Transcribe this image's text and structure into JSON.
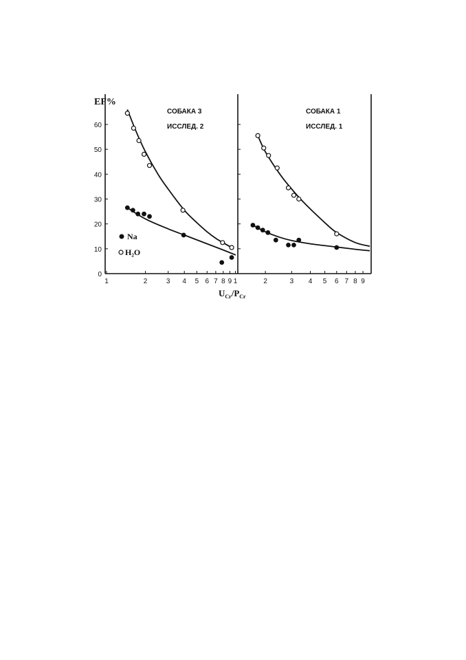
{
  "chart_data": [
    {
      "type": "scatter",
      "ylabel": "EF%",
      "xlabel": "U",
      "xlabel_sub1": "Cr",
      "xlabel_mid": "/P",
      "xlabel_sub2": "Cr",
      "x_scale": "log",
      "xlim": [
        1,
        10
      ],
      "ylim": [
        0,
        70
      ],
      "y_ticks": [
        "0",
        "10",
        "20",
        "30",
        "40",
        "50",
        "60"
      ],
      "x_ticks": [
        "1",
        "2",
        "3",
        "4",
        "5",
        "6",
        "7",
        "8",
        "9",
        "1"
      ],
      "annotation": [
        "СОБАКА 3",
        "ИССЛЕД. 2"
      ],
      "legend": [
        "Na",
        "H₂O"
      ],
      "series": [
        {
          "name": "H₂O",
          "marker": "open",
          "x": [
            1.45,
            1.62,
            1.78,
            1.95,
            2.15,
            3.9,
            7.9,
            9.3
          ],
          "y": [
            64.5,
            58.5,
            53.5,
            48,
            43.5,
            25.5,
            12.5,
            10.5
          ],
          "fit_x": [
            1.45,
            1.7,
            2.0,
            2.5,
            3.0,
            4.0,
            5.0,
            6.0,
            7.0,
            8.0,
            9.5
          ],
          "fit_y": [
            66,
            57,
            49,
            40,
            34,
            25.5,
            20.5,
            16.8,
            14.2,
            12.4,
            10.2
          ]
        },
        {
          "name": "Na",
          "marker": "filled",
          "x": [
            1.45,
            1.6,
            1.75,
            1.95,
            2.15,
            3.95,
            7.8,
            9.3
          ],
          "y": [
            26.5,
            25.5,
            24,
            24,
            23,
            15.5,
            4.5,
            6.5
          ],
          "fit_x": [
            1.45,
            2.0,
            3.0,
            4.0,
            6.0,
            8.0,
            10.0
          ],
          "fit_y": [
            26.5,
            22,
            18,
            15.5,
            12,
            9.5,
            7.5
          ]
        }
      ]
    },
    {
      "type": "scatter",
      "x_scale": "log",
      "xlim": [
        1.35,
        10
      ],
      "ylim": [
        0,
        70
      ],
      "x_ticks": [
        "2",
        "3",
        "4",
        "5",
        "6",
        "7",
        "8",
        "9"
      ],
      "annotation": [
        "СОБАКА 1",
        "ИССЛЕД. 1"
      ],
      "series": [
        {
          "name": "H₂O",
          "marker": "open",
          "x": [
            1.78,
            1.95,
            2.1,
            2.4,
            2.85,
            3.1,
            3.35,
            6.0
          ],
          "y": [
            55.5,
            50.5,
            47.5,
            42.5,
            34.5,
            31.5,
            30,
            16
          ],
          "fit_x": [
            1.78,
            2.0,
            2.5,
            3.0,
            3.5,
            4.0,
            5.0,
            6.0,
            8.0,
            10.0
          ],
          "fit_y": [
            55.5,
            49,
            40,
            34,
            29.5,
            26,
            20.5,
            16.5,
            12.5,
            11.0
          ]
        },
        {
          "name": "Na",
          "marker": "filled",
          "x": [
            1.65,
            1.78,
            1.92,
            2.08,
            2.35,
            2.85,
            3.1,
            3.35,
            6.0
          ],
          "y": [
            19.5,
            18.5,
            17.5,
            16.5,
            13.5,
            11.5,
            11.5,
            13.5,
            10.5
          ],
          "fit_x": [
            1.65,
            2.0,
            2.5,
            3.0,
            4.0,
            6.0,
            8.0,
            10.0
          ],
          "fit_y": [
            19.5,
            16.8,
            14.6,
            13.3,
            12.0,
            10.7,
            9.8,
            9.2
          ]
        }
      ]
    }
  ]
}
